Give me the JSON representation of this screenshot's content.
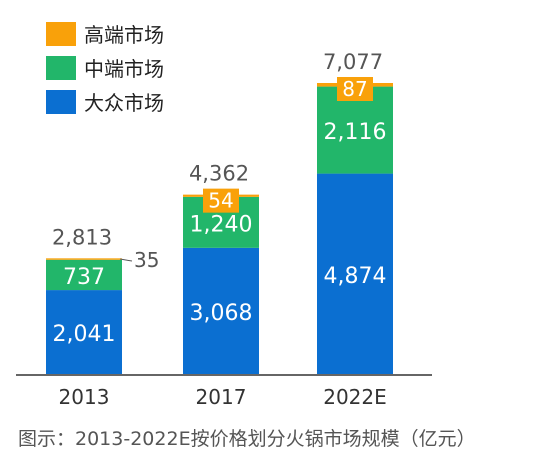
{
  "chart_data": {
    "type": "bar",
    "stacked": true,
    "categories": [
      "2013",
      "2017",
      "2022E"
    ],
    "series": [
      {
        "name": "大众市场",
        "color": "#0B6FD1",
        "values": [
          2041,
          3068,
          4874
        ],
        "labels": [
          "2,041",
          "3,068",
          "4,874"
        ]
      },
      {
        "name": "中端市场",
        "color": "#22B66A",
        "values": [
          737,
          1240,
          2116
        ],
        "labels": [
          "737",
          "1,240",
          "2,116"
        ]
      },
      {
        "name": "高端市场",
        "color": "#F9A10A",
        "values": [
          35,
          54,
          87
        ],
        "labels": [
          "35",
          "54",
          "87"
        ]
      }
    ],
    "totals": [
      2813,
      4362,
      7077
    ],
    "total_labels": [
      "2,813",
      "4,362",
      "7,077"
    ],
    "legend_order": [
      "高端市场",
      "中端市场",
      "大众市场"
    ],
    "legend_position": "top-left",
    "ylim": [
      0,
      7077
    ],
    "grid": false
  },
  "caption": "图示：2013-2022E按价格划分火锅市场规模（亿元）"
}
